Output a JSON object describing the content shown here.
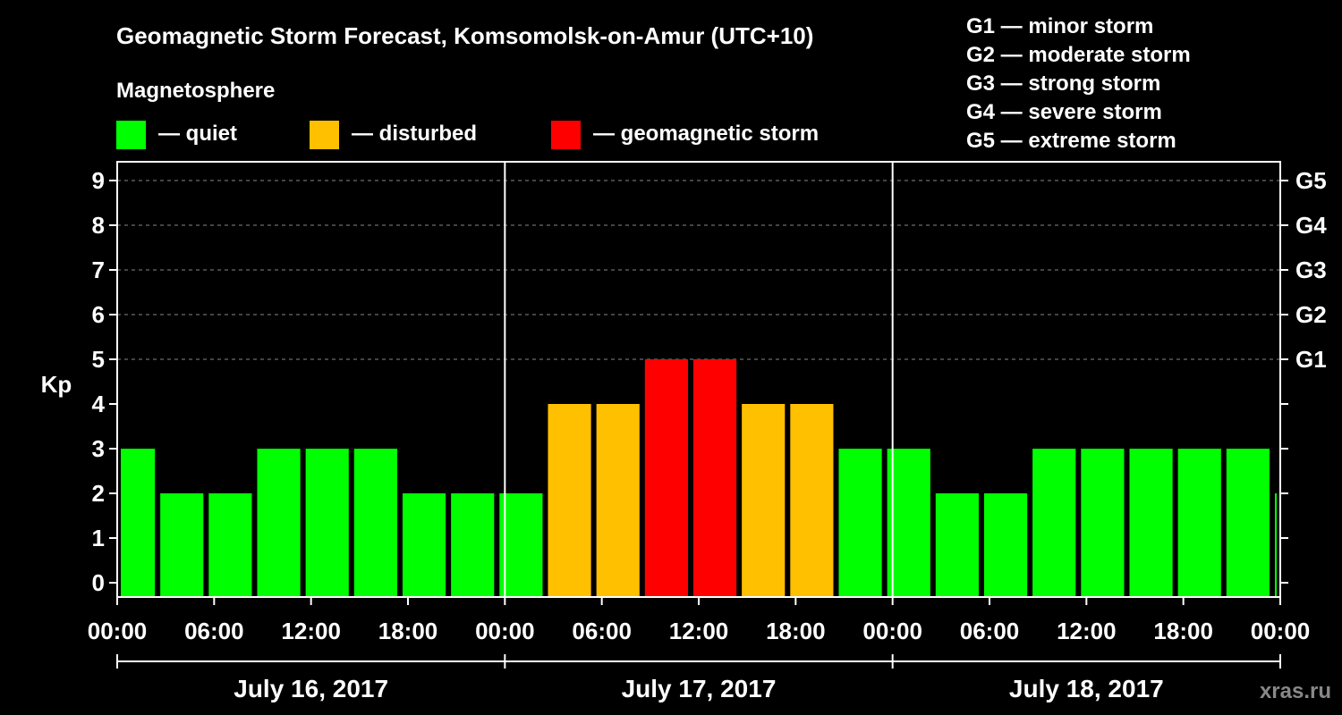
{
  "chart_data": {
    "type": "bar",
    "title": "Geomagnetic Storm Forecast, Komsomolsk-on-Amur (UTC+10)",
    "ylabel": "Kp",
    "ylim": [
      0,
      9
    ],
    "y_ticks": [
      "0",
      "1",
      "2",
      "3",
      "4",
      "5",
      "6",
      "7",
      "8",
      "9"
    ],
    "right_axis_labels": [
      {
        "kp": 5,
        "label": "G1"
      },
      {
        "kp": 6,
        "label": "G2"
      },
      {
        "kp": 7,
        "label": "G3"
      },
      {
        "kp": 8,
        "label": "G4"
      },
      {
        "kp": 9,
        "label": "G5"
      }
    ],
    "x_tick_labels": [
      "00:00",
      "06:00",
      "12:00",
      "18:00",
      "00:00",
      "06:00",
      "12:00",
      "18:00",
      "00:00",
      "06:00",
      "12:00",
      "18:00",
      "00:00"
    ],
    "days": [
      "July 16, 2017",
      "July 17, 2017",
      "July 18, 2017"
    ],
    "interval_hours": 3,
    "start_offset_hours": 1,
    "x_range_hours": [
      0,
      72
    ],
    "values": [
      3,
      2,
      2,
      3,
      3,
      3,
      2,
      2,
      2,
      4,
      4,
      5,
      5,
      4,
      4,
      3,
      3,
      2,
      2,
      3,
      3,
      3,
      3,
      3,
      2
    ],
    "thresholds": {
      "disturbed": 4,
      "storm": 5
    },
    "colors": {
      "quiet": "#00ff00",
      "disturbed": "#ffc000",
      "storm": "#ff0000",
      "background": "#000000",
      "axis": "#ffffff",
      "grid": "#888888"
    },
    "legend": {
      "heading": "Magnetosphere",
      "items": [
        {
          "key": "quiet",
          "label": "— quiet"
        },
        {
          "key": "disturbed",
          "label": "— disturbed"
        },
        {
          "key": "storm",
          "label": "— geomagnetic storm"
        }
      ]
    },
    "storm_scale": [
      "G1 — minor storm",
      "G2 — moderate storm",
      "G3 — strong storm",
      "G4 — severe storm",
      "G5 — extreme storm"
    ],
    "watermark": "xras.ru"
  }
}
